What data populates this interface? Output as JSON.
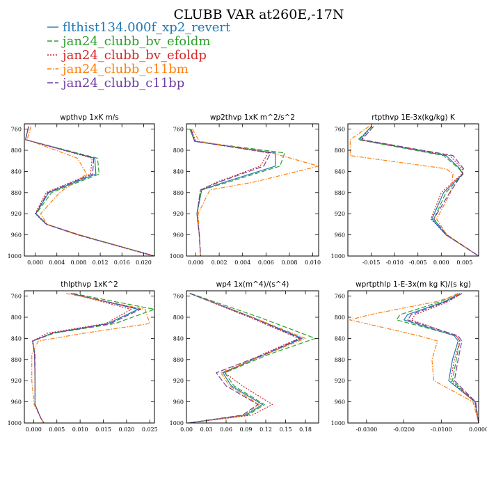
{
  "figure": {
    "title": "CLUBB VAR at260E,-17N"
  },
  "legend": [
    {
      "label": "flthist134.000f_xp2_revert",
      "color": "#1f77b4",
      "dash": ""
    },
    {
      "label": "jan24_clubb_bv_efoldm",
      "color": "#2ca02c",
      "dash": "7,3"
    },
    {
      "label": "jan24_clubb_bv_efoldp",
      "color": "#d62728",
      "dash": "2,2"
    },
    {
      "label": "jan24_clubb_c11bm",
      "color": "#ff7f0e",
      "dash": "6,2,1.5,2"
    },
    {
      "label": "jan24_clubb_c11bp",
      "color": "#6f3f9f",
      "dash": "8,3"
    }
  ],
  "chart_data": [
    {
      "type": "line",
      "title": "wpthvp   1xK m/s",
      "xlim": [
        -0.002,
        0.022
      ],
      "ylim": [
        750,
        1000
      ],
      "y_inverted": true,
      "xticks": [
        0.0,
        0.004,
        0.008,
        0.012,
        0.016,
        0.02
      ],
      "xtick_labels": [
        "0.000",
        "0.004",
        "0.008",
        "0.012",
        "0.016",
        "0.020"
      ],
      "yticks": [
        760,
        800,
        840,
        880,
        920,
        960,
        1000
      ],
      "y": [
        755,
        780,
        815,
        845,
        880,
        920,
        940,
        960,
        1000
      ],
      "series": [
        {
          "name": "flthist134.000f_xp2_revert",
          "x": [
            -0.0012,
            -0.0018,
            0.011,
            0.0112,
            0.0025,
            0.0001,
            0.0021,
            0.008,
            0.022
          ]
        },
        {
          "name": "jan24_clubb_bv_efoldm",
          "x": [
            -0.0012,
            -0.0018,
            0.0115,
            0.0118,
            0.003,
            0.0002,
            0.0022,
            0.0082,
            0.022
          ]
        },
        {
          "name": "jan24_clubb_bv_efoldp",
          "x": [
            -0.0012,
            -0.0018,
            0.0105,
            0.0102,
            0.002,
            0.0,
            0.002,
            0.0078,
            0.0218
          ]
        },
        {
          "name": "jan24_clubb_c11bm",
          "x": [
            -0.0008,
            -0.0015,
            0.0078,
            0.0095,
            0.0045,
            0.001,
            0.0022,
            0.0081,
            0.022
          ]
        },
        {
          "name": "jan24_clubb_c11bp",
          "x": [
            -0.0012,
            -0.0018,
            0.0108,
            0.0106,
            0.0023,
            0.0001,
            0.0021,
            0.0079,
            0.022
          ]
        }
      ]
    },
    {
      "type": "line",
      "title": "wp2thvp   1xK m^2/s^2",
      "xlim": [
        -0.0008,
        0.0105
      ],
      "ylim": [
        750,
        1000
      ],
      "y_inverted": true,
      "xticks": [
        0.0,
        0.002,
        0.004,
        0.006,
        0.008,
        0.01
      ],
      "xtick_labels": [
        "0.000",
        "0.002",
        "0.004",
        "0.006",
        "0.008",
        "0.010"
      ],
      "yticks": [
        760,
        800,
        840,
        880,
        920,
        960,
        1000
      ],
      "y": [
        760,
        783,
        805,
        830,
        860,
        875,
        920,
        960,
        1000
      ],
      "series": [
        {
          "name": "flthist134.000f_xp2_revert",
          "x": [
            -0.0005,
            -0.0001,
            0.0068,
            0.0068,
            0.0025,
            0.0005,
            0.0001,
            0.0003,
            0.0004
          ]
        },
        {
          "name": "jan24_clubb_bv_efoldm",
          "x": [
            -0.0005,
            -0.0001,
            0.0076,
            0.0072,
            0.0028,
            0.0005,
            0.0001,
            0.0003,
            0.0004
          ]
        },
        {
          "name": "jan24_clubb_bv_efoldp",
          "x": [
            -0.0004,
            0.0,
            0.0062,
            0.0055,
            0.0018,
            0.0004,
            0.0001,
            0.0003,
            0.0004
          ]
        },
        {
          "name": "jan24_clubb_c11bm",
          "x": [
            -0.0003,
            0.0003,
            0.0065,
            0.0105,
            0.005,
            0.0012,
            0.0002,
            0.0003,
            0.0004
          ]
        },
        {
          "name": "jan24_clubb_c11bp",
          "x": [
            -0.0004,
            -0.0001,
            0.0064,
            0.0058,
            0.002,
            0.0004,
            0.0001,
            0.0003,
            0.0004
          ]
        }
      ]
    },
    {
      "type": "line",
      "title": "rtpthvp   1E-3x(kg/kg) K",
      "xlim": [
        -0.02,
        0.008
      ],
      "ylim": [
        750,
        1000
      ],
      "y_inverted": true,
      "xticks": [
        -0.015,
        -0.01,
        -0.005,
        0.0,
        0.005
      ],
      "xtick_labels": [
        "-0.015",
        "-0.010",
        "-0.005",
        "0.000",
        "0.005"
      ],
      "yticks": [
        760,
        800,
        840,
        880,
        920,
        960,
        1000
      ],
      "y": [
        755,
        780,
        810,
        835,
        845,
        880,
        930,
        960,
        1000
      ],
      "series": [
        {
          "name": "flthist134.000f_xp2_revert",
          "x": [
            -0.015,
            -0.0175,
            0.001,
            0.004,
            0.0046,
            0.0005,
            -0.002,
            0.001,
            0.008
          ]
        },
        {
          "name": "jan24_clubb_bv_efoldm",
          "x": [
            -0.0148,
            -0.0178,
            0.0005,
            0.0038,
            0.0047,
            0.001,
            -0.0016,
            0.0012,
            0.008
          ]
        },
        {
          "name": "jan24_clubb_bv_efoldp",
          "x": [
            -0.015,
            -0.0172,
            0.0018,
            0.0045,
            0.0044,
            0.0,
            -0.0022,
            0.001,
            0.008
          ]
        },
        {
          "name": "jan24_clubb_c11bm",
          "x": [
            -0.0155,
            -0.0195,
            -0.0195,
            0.001,
            0.0025,
            0.002,
            -0.001,
            0.0012,
            0.008
          ]
        },
        {
          "name": "jan24_clubb_c11bp",
          "x": [
            -0.0145,
            -0.017,
            0.0025,
            0.0048,
            0.0045,
            0.0018,
            -0.0016,
            0.0012,
            0.008
          ]
        }
      ]
    },
    {
      "type": "line",
      "title": "thlpthvp   1xK^2",
      "xlim": [
        -0.002,
        0.026
      ],
      "ylim": [
        750,
        1000
      ],
      "y_inverted": true,
      "xticks": [
        0.0,
        0.005,
        0.01,
        0.015,
        0.02,
        0.025
      ],
      "xtick_labels": [
        "0.000",
        "0.005",
        "0.010",
        "0.015",
        "0.020",
        "0.025"
      ],
      "yticks": [
        760,
        800,
        840,
        880,
        920,
        960,
        1000
      ],
      "y": [
        755,
        785,
        812,
        830,
        845,
        870,
        920,
        965,
        990,
        1000
      ],
      "series": [
        {
          "name": "flthist134.000f_xp2_revert",
          "x": [
            0.008,
            0.0225,
            0.016,
            0.004,
            -0.0002,
            0.0002,
            0.0003,
            0.0003,
            0.0015,
            0.0022
          ]
        },
        {
          "name": "jan24_clubb_bv_efoldm",
          "x": [
            0.0085,
            0.026,
            0.0175,
            0.0045,
            -0.0002,
            0.0003,
            0.0003,
            0.0003,
            0.0015,
            0.0022
          ]
        },
        {
          "name": "jan24_clubb_bv_efoldp",
          "x": [
            0.008,
            0.021,
            0.0155,
            0.003,
            -0.0003,
            0.0002,
            0.0003,
            0.0003,
            0.0015,
            0.0022
          ]
        },
        {
          "name": "jan24_clubb_c11bm",
          "x": [
            0.007,
            0.024,
            0.025,
            0.011,
            0.001,
            -0.0004,
            -0.0004,
            0.0001,
            0.0015,
            0.0022
          ]
        },
        {
          "name": "jan24_clubb_c11bp",
          "x": [
            0.008,
            0.023,
            0.0165,
            0.004,
            -0.0002,
            0.0002,
            0.0003,
            0.0003,
            0.0015,
            0.0022
          ]
        }
      ]
    },
    {
      "type": "line",
      "title": "wp4   1x(m^4)/(s^4)",
      "xlim": [
        0.0,
        0.2
      ],
      "ylim": [
        750,
        1000
      ],
      "y_inverted": true,
      "xticks": [
        0.0,
        0.03,
        0.06,
        0.09,
        0.12,
        0.15,
        0.18
      ],
      "xtick_labels": [
        "0.00",
        "0.03",
        "0.06",
        "0.09",
        "0.12",
        "0.15",
        "0.18"
      ],
      "yticks": [
        760,
        800,
        840,
        880,
        920,
        960,
        1000
      ],
      "y": [
        755,
        800,
        840,
        870,
        905,
        930,
        965,
        985,
        1000
      ],
      "series": [
        {
          "name": "flthist134.000f_xp2_revert",
          "x": [
            0.005,
            0.1,
            0.175,
            0.12,
            0.055,
            0.068,
            0.115,
            0.09,
            0.003
          ]
        },
        {
          "name": "jan24_clubb_bv_efoldm",
          "x": [
            0.006,
            0.11,
            0.195,
            0.125,
            0.058,
            0.072,
            0.118,
            0.093,
            0.003
          ]
        },
        {
          "name": "jan24_clubb_bv_efoldp",
          "x": [
            0.005,
            0.095,
            0.17,
            0.115,
            0.058,
            0.085,
            0.13,
            0.1,
            0.003
          ]
        },
        {
          "name": "jan24_clubb_c11bm",
          "x": [
            0.005,
            0.1,
            0.18,
            0.12,
            0.052,
            0.065,
            0.11,
            0.088,
            0.003
          ]
        },
        {
          "name": "jan24_clubb_c11bp",
          "x": [
            0.005,
            0.098,
            0.172,
            0.118,
            0.045,
            0.06,
            0.108,
            0.085,
            0.003
          ]
        }
      ]
    },
    {
      "type": "line",
      "title": "wprtpthlp   1-E-3x(m kg K)/(s kg)",
      "xlim": [
        -0.035,
        0.0
      ],
      "ylim": [
        750,
        1000
      ],
      "y_inverted": true,
      "xticks": [
        -0.03,
        -0.02,
        -0.01,
        0.0
      ],
      "xtick_labels": [
        "-0.0300",
        "-0.0200",
        "-0.0100",
        "0.0000"
      ],
      "yticks": [
        760,
        800,
        840,
        880,
        920,
        960,
        1000
      ],
      "y": [
        755,
        770,
        795,
        805,
        835,
        845,
        880,
        920,
        960,
        1000
      ],
      "series": [
        {
          "name": "flthist134.000f_xp2_revert",
          "x": [
            -0.005,
            -0.009,
            -0.019,
            -0.02,
            -0.0065,
            -0.0055,
            -0.007,
            -0.008,
            -0.001,
            0.0
          ]
        },
        {
          "name": "jan24_clubb_bv_efoldm",
          "x": [
            -0.0055,
            -0.01,
            -0.021,
            -0.022,
            -0.006,
            -0.005,
            -0.006,
            -0.007,
            -0.001,
            0.0
          ]
        },
        {
          "name": "jan24_clubb_bv_efoldp",
          "x": [
            -0.0045,
            -0.008,
            -0.017,
            -0.018,
            -0.006,
            -0.005,
            -0.0065,
            -0.0075,
            -0.001,
            0.0
          ]
        },
        {
          "name": "jan24_clubb_c11bm",
          "x": [
            -0.005,
            -0.011,
            -0.029,
            -0.0345,
            -0.016,
            -0.011,
            -0.0125,
            -0.012,
            -0.0015,
            0.0
          ]
        },
        {
          "name": "jan24_clubb_c11bp",
          "x": [
            -0.0045,
            -0.0085,
            -0.018,
            -0.019,
            -0.0055,
            -0.0045,
            -0.0055,
            -0.0065,
            -0.0008,
            0.0
          ]
        }
      ]
    }
  ]
}
